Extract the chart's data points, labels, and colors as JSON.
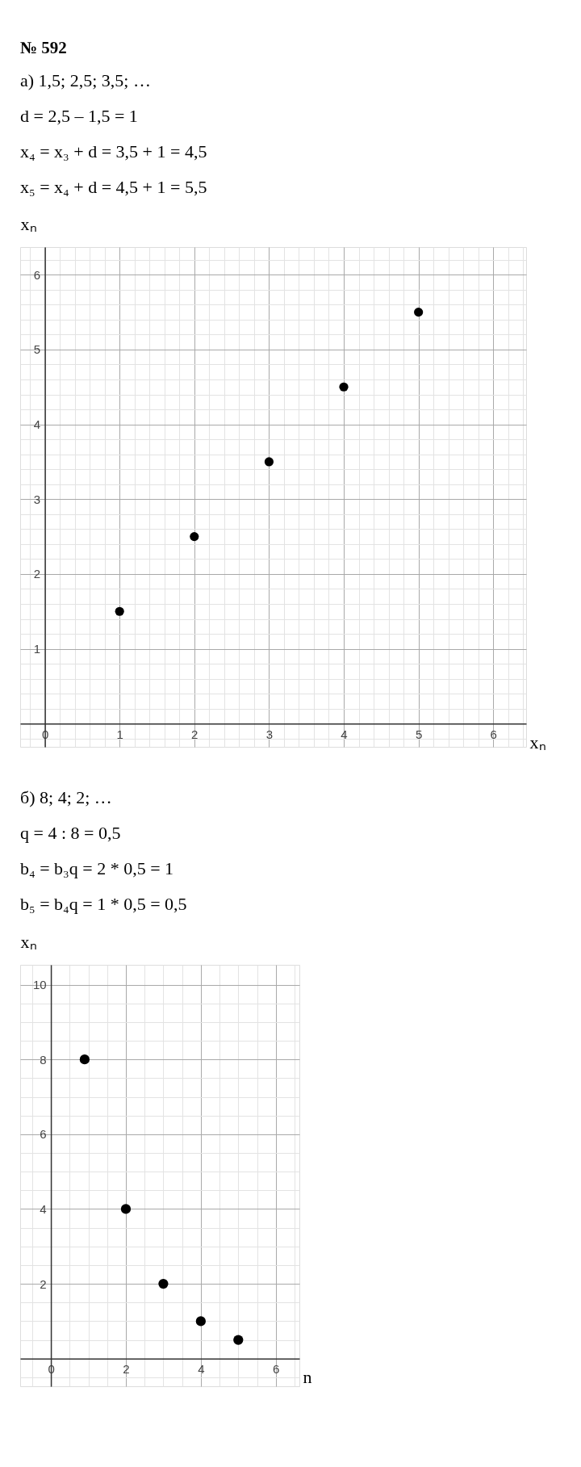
{
  "chart_data": [
    {
      "type": "scatter",
      "title": "№ 592",
      "annotations": [
        "а) 1,5; 2,5; 3,5; …",
        "d = 2,5 – 1,5 = 1",
        "x₄ = x₃ + d = 3,5 + 1 = 4,5",
        "x₅ = x₄ + d = 4,5 + 1 = 5,5"
      ],
      "xlabel": "xₙ",
      "ylabel": "xₙ",
      "x": [
        1,
        2,
        3,
        4,
        5
      ],
      "values": [
        1.5,
        2.5,
        3.5,
        4.5,
        5.5
      ],
      "color": "#000000",
      "marker": "circle",
      "xlim": [
        -0.33,
        6.44
      ],
      "ylim": [
        -0.31,
        6.37
      ],
      "xticks": [
        {
          "value": -0.2,
          "label": null
        },
        0,
        {
          "value": 0.2,
          "label": null
        },
        {
          "value": 0.4,
          "label": null
        },
        {
          "value": 0.6,
          "label": null
        },
        {
          "value": 0.8,
          "label": null
        },
        1,
        {
          "value": 1.2,
          "label": null
        },
        {
          "value": 1.4,
          "label": null
        },
        {
          "value": 1.6,
          "label": null
        },
        {
          "value": 1.8,
          "label": null
        },
        2,
        {
          "value": 2.2,
          "label": null
        },
        {
          "value": 2.4,
          "label": null
        },
        {
          "value": 2.6,
          "label": null
        },
        {
          "value": 2.8,
          "label": null
        },
        3,
        {
          "value": 3.2,
          "label": null
        },
        {
          "value": 3.4,
          "label": null
        },
        {
          "value": 3.6,
          "label": null
        },
        {
          "value": 3.8,
          "label": null
        },
        4,
        {
          "value": 4.2,
          "label": null
        },
        {
          "value": 4.4,
          "label": null
        },
        {
          "value": 4.6,
          "label": null
        },
        {
          "value": 4.8,
          "label": null
        },
        5,
        {
          "value": 5.2,
          "label": null
        },
        {
          "value": 5.4,
          "label": null
        },
        {
          "value": 5.6,
          "label": null
        },
        {
          "value": 5.8,
          "label": null
        },
        6,
        {
          "value": 6.2,
          "label": null
        },
        {
          "value": 6.4,
          "label": null
        }
      ],
      "yticks": [
        {
          "value": -0.2,
          "label": null
        },
        {
          "value": 0.2,
          "label": null
        },
        {
          "value": 0.4,
          "label": null
        },
        {
          "value": 0.6,
          "label": null
        },
        {
          "value": 0.8,
          "label": null
        },
        1,
        {
          "value": 1.2,
          "label": null
        },
        {
          "value": 1.4,
          "label": null
        },
        {
          "value": 1.6,
          "label": null
        },
        {
          "value": 1.8,
          "label": null
        },
        2,
        {
          "value": 2.2,
          "label": null
        },
        {
          "value": 2.4,
          "label": null
        },
        {
          "value": 2.6,
          "label": null
        },
        {
          "value": 2.8,
          "label": null
        },
        3,
        {
          "value": 3.2,
          "label": null
        },
        {
          "value": 3.4,
          "label": null
        },
        {
          "value": 3.6,
          "label": null
        },
        {
          "value": 3.8,
          "label": null
        },
        4,
        {
          "value": 4.2,
          "label": null
        },
        {
          "value": 4.4,
          "label": null
        },
        {
          "value": 4.6,
          "label": null
        },
        {
          "value": 4.8,
          "label": null
        },
        5,
        {
          "value": 5.2,
          "label": null
        },
        {
          "value": 5.4,
          "label": null
        },
        {
          "value": 5.6,
          "label": null
        },
        {
          "value": 5.8,
          "label": null
        },
        6,
        {
          "value": 6.2,
          "label": null
        }
      ],
      "grid": true
    },
    {
      "type": "scatter",
      "annotations": [
        "б) 8; 4; 2; …",
        "q = 4 : 8 = 0,5",
        "b₄ = b₃q = 2 * 0,5 = 1",
        "b₅ = b₄q = 1 * 0,5 = 0,5"
      ],
      "xlabel": "n",
      "ylabel": "xₙ",
      "x": [
        0.9,
        2,
        3,
        4,
        5
      ],
      "values": [
        8,
        4,
        2,
        1,
        0.5
      ],
      "color": "#000000",
      "marker": "circle",
      "xlim": [
        -0.82,
        6.63
      ],
      "ylim": [
        -0.74,
        10.53
      ],
      "xticks": [
        {
          "value": -0.5,
          "label": null
        },
        0,
        {
          "value": 0.5,
          "label": null
        },
        {
          "value": 1,
          "label": null
        },
        {
          "value": 1.5,
          "label": null
        },
        2,
        {
          "value": 2.5,
          "label": null
        },
        {
          "value": 3,
          "label": null
        },
        {
          "value": 3.5,
          "label": null
        },
        4,
        {
          "value": 4.5,
          "label": null
        },
        {
          "value": 5,
          "label": null
        },
        {
          "value": 5.5,
          "label": null
        },
        6,
        {
          "value": 6.5,
          "label": null
        }
      ],
      "yticks": [
        {
          "value": -0.5,
          "label": null
        },
        {
          "value": 0.5,
          "label": null
        },
        {
          "value": 1,
          "label": null
        },
        {
          "value": 1.5,
          "label": null
        },
        2,
        {
          "value": 2.5,
          "label": null
        },
        {
          "value": 3,
          "label": null
        },
        {
          "value": 3.5,
          "label": null
        },
        4,
        {
          "value": 4.5,
          "label": null
        },
        {
          "value": 5,
          "label": null
        },
        {
          "value": 5.5,
          "label": null
        },
        6,
        {
          "value": 6.5,
          "label": null
        },
        {
          "value": 7,
          "label": null
        },
        {
          "value": 7.5,
          "label": null
        },
        8,
        {
          "value": 8.5,
          "label": null
        },
        {
          "value": 9,
          "label": null
        },
        {
          "value": 9.5,
          "label": null
        },
        10
      ],
      "grid": true
    }
  ]
}
